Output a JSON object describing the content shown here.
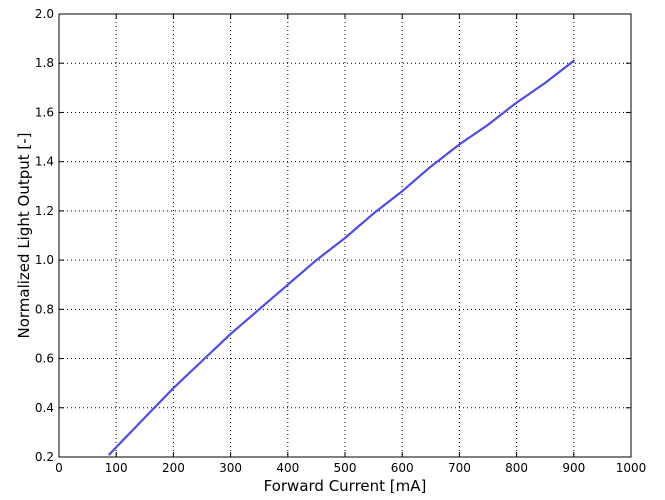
{
  "chart_data": {
    "type": "line",
    "title": "",
    "xlabel": "Forward Current [mA]",
    "ylabel": "Normalized Light Output [-]",
    "xlim": [
      0,
      1000
    ],
    "ylim": [
      0.2,
      2.0
    ],
    "xticks": [
      0,
      100,
      200,
      300,
      400,
      500,
      600,
      700,
      800,
      900,
      1000
    ],
    "yticks": [
      "0.2",
      "0.4",
      "0.6",
      "0.8",
      "1.0",
      "1.2",
      "1.4",
      "1.6",
      "1.8",
      "2.0"
    ],
    "grid": true,
    "legend": "none",
    "series": [
      {
        "color": "#4b4bef",
        "x": [
          88,
          100,
          150,
          200,
          250,
          300,
          350,
          400,
          450,
          500,
          550,
          600,
          650,
          700,
          750,
          800,
          850,
          900
        ],
        "y": [
          0.21,
          0.24,
          0.36,
          0.48,
          0.59,
          0.7,
          0.8,
          0.9,
          1.0,
          1.09,
          1.19,
          1.28,
          1.38,
          1.47,
          1.55,
          1.64,
          1.72,
          1.81
        ]
      }
    ]
  }
}
